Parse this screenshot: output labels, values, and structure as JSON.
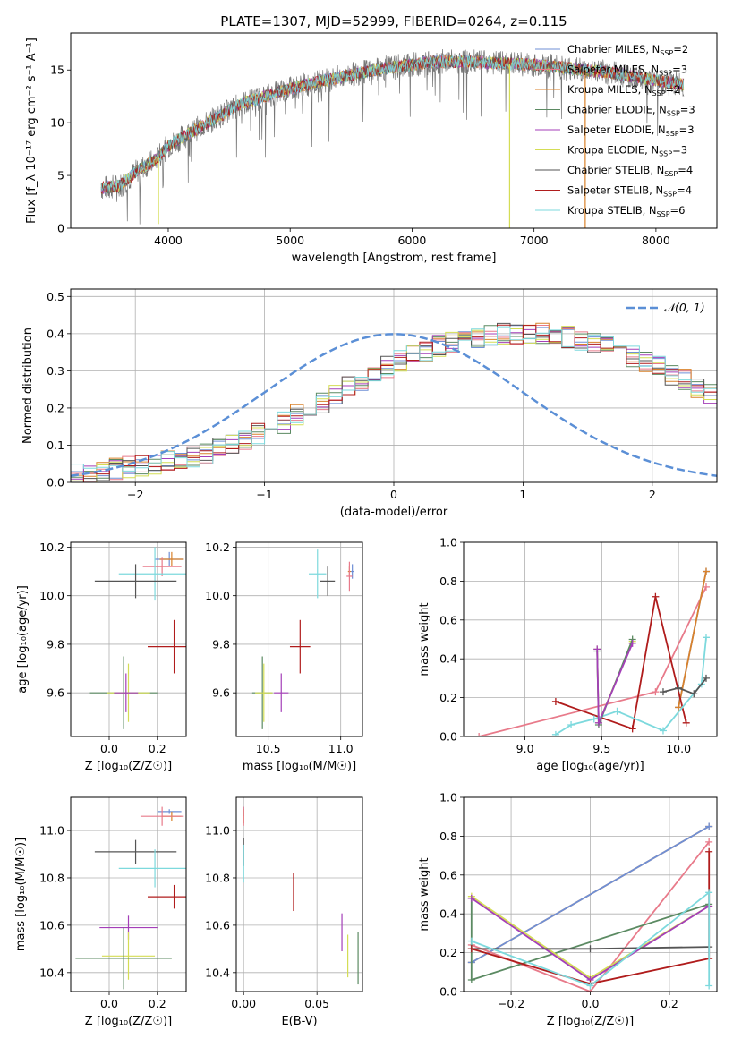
{
  "figure_title": "PLATE=1307, MJD=52999, FIBERID=0264, z=0.115",
  "colors": {
    "Chabrier MILES": "#6f8fd6",
    "Salpeter MILES": "#e87a8a",
    "Kroupa MILES": "#d9822b",
    "Chabrier ELODIE": "#5b8a62",
    "Salpeter ELODIE": "#a43fb8",
    "Kroupa ELODIE": "#d4dd55",
    "Chabrier STELIB": "#555555",
    "Salpeter STELIB": "#b01c1c",
    "Kroupa STELIB": "#7dd9dd",
    "gaussian": "#5b8fd6"
  },
  "chart_data": [
    {
      "id": "spectrum",
      "type": "line",
      "xlabel": "wavelength [Angstrom, rest frame]",
      "ylabel": "Flux [f_λ 10⁻¹⁷ erg cm⁻² s⁻¹ A⁻¹]",
      "xlim": [
        3200,
        8500
      ],
      "ylim": [
        0,
        18.5
      ],
      "xticks": [
        4000,
        5000,
        6000,
        7000,
        8000
      ],
      "yticks": [
        0,
        5,
        10,
        15
      ],
      "legend": "top-right",
      "legend_entries": [
        {
          "label": "Chabrier MILES, N",
          "sub": "SSP",
          "eq": "=2",
          "color": "#6f8fd6"
        },
        {
          "label": "Salpeter MILES, N",
          "sub": "SSP",
          "eq": "=3",
          "color": "#e87a8a"
        },
        {
          "label": "Kroupa MILES, N",
          "sub": "SSP",
          "eq": "=2",
          "color": "#d9822b"
        },
        {
          "label": "Chabrier ELODIE, N",
          "sub": "SSP",
          "eq": "=3",
          "color": "#5b8a62"
        },
        {
          "label": "Salpeter ELODIE, N",
          "sub": "SSP",
          "eq": "=3",
          "color": "#a43fb8"
        },
        {
          "label": "Kroupa ELODIE, N",
          "sub": "SSP",
          "eq": "=3",
          "color": "#d4dd55"
        },
        {
          "label": "Chabrier STELIB, N",
          "sub": "SSP",
          "eq": "=4",
          "color": "#555555"
        },
        {
          "label": "Salpeter STELIB, N",
          "sub": "SSP",
          "eq": "=4",
          "color": "#b01c1c"
        },
        {
          "label": "Kroupa STELIB, N",
          "sub": "SSP",
          "eq": "=6",
          "color": "#7dd9dd"
        }
      ],
      "continuum": [
        [
          3450,
          3.8
        ],
        [
          3600,
          4.0
        ],
        [
          3750,
          5.5
        ],
        [
          3900,
          6.5
        ],
        [
          4000,
          7.8
        ],
        [
          4200,
          9.2
        ],
        [
          4400,
          10.5
        ],
        [
          4600,
          11.8
        ],
        [
          4800,
          12.5
        ],
        [
          5000,
          13.2
        ],
        [
          5200,
          13.8
        ],
        [
          5400,
          14.3
        ],
        [
          5600,
          14.8
        ],
        [
          5800,
          15.2
        ],
        [
          6000,
          15.5
        ],
        [
          6200,
          15.8
        ],
        [
          6400,
          15.8
        ],
        [
          6600,
          15.7
        ],
        [
          6800,
          15.6
        ],
        [
          7000,
          15.5
        ],
        [
          7200,
          15.3
        ],
        [
          7400,
          15.0
        ],
        [
          7600,
          14.8
        ],
        [
          7800,
          14.4
        ],
        [
          8000,
          14.0
        ],
        [
          8230,
          13.6
        ]
      ],
      "sharp_dips": [
        {
          "x": 6800,
          "y": 0,
          "color": "#d4dd55"
        },
        {
          "x": 7420,
          "y": 0,
          "color": "#d9822b"
        },
        {
          "x": 3920,
          "y": 0.4,
          "color": "#d4dd55"
        }
      ],
      "xrange": [
        3450,
        8230
      ]
    },
    {
      "id": "residuals",
      "type": "histogram",
      "xlabel": "(data-model)/error",
      "ylabel": "Normed distribution",
      "xlim": [
        -2.5,
        2.5
      ],
      "ylim": [
        0,
        0.52
      ],
      "xticks": [
        -2,
        -1,
        0,
        1,
        2
      ],
      "yticks": [
        0.0,
        0.1,
        0.2,
        0.3,
        0.4,
        0.5
      ],
      "grid": true,
      "legend": "top-right",
      "legend_label": "𝒩(0, 1)",
      "bin_width": 0.1,
      "x_start": -2.5,
      "series_base": [
        0.02,
        0.025,
        0.03,
        0.035,
        0.04,
        0.045,
        0.05,
        0.055,
        0.06,
        0.07,
        0.08,
        0.09,
        0.1,
        0.115,
        0.13,
        0.145,
        0.16,
        0.18,
        0.195,
        0.215,
        0.235,
        0.255,
        0.275,
        0.29,
        0.31,
        0.325,
        0.34,
        0.355,
        0.365,
        0.375,
        0.385,
        0.39,
        0.395,
        0.4,
        0.4,
        0.4,
        0.4,
        0.395,
        0.39,
        0.385,
        0.375,
        0.365,
        0.355,
        0.34,
        0.325,
        0.31,
        0.29,
        0.275,
        0.255,
        0.235,
        0.215,
        0.195,
        0.18,
        0.16,
        0.145,
        0.13,
        0.115,
        0.1,
        0.09,
        0.08,
        0.07,
        0.06,
        0.055,
        0.05,
        0.045,
        0.04,
        0.035,
        0.03,
        0.025,
        0.02,
        0.02,
        0.02,
        0.02,
        0.02,
        0.02,
        0.02
      ]
    },
    {
      "id": "age_vs_Z",
      "type": "errorbar",
      "xlabel": "Z [log₁₀(Z/Z☉)]",
      "ylabel": "age  [log₁₀(age/yr)]",
      "xlim": [
        -0.16,
        0.32
      ],
      "ylim": [
        9.42,
        10.22
      ],
      "xticks": [
        0.0,
        0.2
      ],
      "yticks": [
        9.6,
        9.8,
        10.0,
        10.2
      ],
      "grid": true,
      "points": [
        {
          "model": "Chabrier MILES",
          "x": 0.25,
          "y": 10.15,
          "xerr": 0.06,
          "yerr": 0.03
        },
        {
          "model": "Kroupa MILES",
          "x": 0.26,
          "y": 10.15,
          "xerr": 0.05,
          "yerr": 0.03
        },
        {
          "model": "Salpeter MILES",
          "x": 0.22,
          "y": 10.12,
          "xerr": 0.08,
          "yerr": 0.04
        },
        {
          "model": "Kroupa STELIB",
          "x": 0.19,
          "y": 10.09,
          "xerr": 0.15,
          "yerr": 0.11
        },
        {
          "model": "Chabrier STELIB",
          "x": 0.11,
          "y": 10.06,
          "xerr": 0.17,
          "yerr": 0.07
        },
        {
          "model": "Salpeter STELIB",
          "x": 0.27,
          "y": 9.79,
          "xerr": 0.11,
          "yerr": 0.11
        },
        {
          "model": "Chabrier ELODIE",
          "x": 0.06,
          "y": 9.6,
          "xerr": 0.14,
          "yerr": 0.15
        },
        {
          "model": "Kroupa ELODIE",
          "x": 0.08,
          "y": 9.6,
          "xerr": 0.09,
          "yerr": 0.12
        },
        {
          "model": "Salpeter ELODIE",
          "x": 0.07,
          "y": 9.6,
          "xerr": 0.05,
          "yerr": 0.08
        }
      ]
    },
    {
      "id": "age_vs_mass",
      "type": "errorbar",
      "xlabel": "mass [log₁₀(M/M☉)]",
      "ylabel": "",
      "xlim": [
        10.28,
        11.15
      ],
      "ylim": [
        9.42,
        10.22
      ],
      "xticks": [
        10.5,
        11.0
      ],
      "yticks": [
        9.6,
        9.8,
        10.0,
        10.2
      ],
      "grid": true,
      "points": [
        {
          "model": "Chabrier MILES",
          "x": 11.08,
          "y": 10.1,
          "xerr": 0.01,
          "yerr": 0.03
        },
        {
          "model": "Kroupa MILES",
          "x": 11.06,
          "y": 10.1,
          "xerr": 0.01,
          "yerr": 0.02
        },
        {
          "model": "Salpeter MILES",
          "x": 11.06,
          "y": 10.08,
          "xerr": 0.02,
          "yerr": 0.06
        },
        {
          "model": "Kroupa STELIB",
          "x": 10.84,
          "y": 10.09,
          "xerr": 0.06,
          "yerr": 0.1
        },
        {
          "model": "Chabrier STELIB",
          "x": 10.91,
          "y": 10.06,
          "xerr": 0.05,
          "yerr": 0.06
        },
        {
          "model": "Salpeter STELIB",
          "x": 10.72,
          "y": 9.79,
          "xerr": 0.07,
          "yerr": 0.11
        },
        {
          "model": "Chabrier ELODIE",
          "x": 10.46,
          "y": 9.6,
          "xerr": 0.07,
          "yerr": 0.15
        },
        {
          "model": "Kroupa ELODIE",
          "x": 10.47,
          "y": 9.6,
          "xerr": 0.06,
          "yerr": 0.12
        },
        {
          "model": "Salpeter ELODIE",
          "x": 10.59,
          "y": 9.6,
          "xerr": 0.05,
          "yerr": 0.08
        }
      ]
    },
    {
      "id": "weight_vs_age",
      "type": "line",
      "xlabel": "age  [log₁₀(age/yr)]",
      "ylabel": "mass weight",
      "xlim": [
        8.6,
        10.25
      ],
      "ylim": [
        0,
        1.0
      ],
      "xticks": [
        9.0,
        9.5,
        10.0
      ],
      "yticks": [
        0.0,
        0.2,
        0.4,
        0.6,
        0.8,
        1.0
      ],
      "grid": true,
      "series": [
        {
          "model": "Salpeter MILES",
          "x": [
            8.7,
            9.85,
            10.18
          ],
          "y": [
            0.0,
            0.23,
            0.77
          ]
        },
        {
          "model": "Chabrier MILES",
          "x": [
            10.0,
            10.18
          ],
          "y": [
            0.15,
            0.85
          ]
        },
        {
          "model": "Kroupa MILES",
          "x": [
            10.0,
            10.18
          ],
          "y": [
            0.15,
            0.85
          ]
        },
        {
          "model": "Salpeter STELIB",
          "x": [
            9.2,
            9.7,
            9.85,
            10.05
          ],
          "y": [
            0.18,
            0.04,
            0.72,
            0.07
          ]
        },
        {
          "model": "Kroupa STELIB",
          "x": [
            9.2,
            9.3,
            9.45,
            9.6,
            9.9,
            10.15,
            10.18
          ],
          "y": [
            0.01,
            0.06,
            0.09,
            0.13,
            0.03,
            0.27,
            0.51
          ]
        },
        {
          "model": "Chabrier STELIB",
          "x": [
            9.9,
            10.0,
            10.1,
            10.18
          ],
          "y": [
            0.23,
            0.25,
            0.22,
            0.3
          ]
        },
        {
          "model": "Kroupa ELODIE",
          "x": [
            9.47,
            9.48,
            9.7
          ],
          "y": [
            0.45,
            0.07,
            0.49
          ]
        },
        {
          "model": "Chabrier ELODIE",
          "x": [
            9.47,
            9.48,
            9.7
          ],
          "y": [
            0.44,
            0.06,
            0.5
          ]
        },
        {
          "model": "Salpeter ELODIE",
          "x": [
            9.47,
            9.48,
            9.7
          ],
          "y": [
            0.45,
            0.07,
            0.48
          ]
        }
      ]
    },
    {
      "id": "mass_vs_Z",
      "type": "errorbar",
      "xlabel": "Z [log₁₀(Z/Z☉)]",
      "ylabel": "mass [log₁₀(M/M☉)]",
      "xlim": [
        -0.16,
        0.32
      ],
      "ylim": [
        10.32,
        11.14
      ],
      "xticks": [
        0.0,
        0.2
      ],
      "yticks": [
        10.4,
        10.6,
        10.8,
        11.0
      ],
      "grid": true,
      "points": [
        {
          "model": "Chabrier MILES",
          "x": 0.25,
          "y": 11.08,
          "xerr": 0.05,
          "yerr": 0.01
        },
        {
          "model": "Kroupa MILES",
          "x": 0.26,
          "y": 11.06,
          "xerr": 0.04,
          "yerr": 0.02
        },
        {
          "model": "Salpeter MILES",
          "x": 0.22,
          "y": 11.06,
          "xerr": 0.09,
          "yerr": 0.04
        },
        {
          "model": "Chabrier STELIB",
          "x": 0.11,
          "y": 10.91,
          "xerr": 0.17,
          "yerr": 0.05
        },
        {
          "model": "Kroupa STELIB",
          "x": 0.19,
          "y": 10.84,
          "xerr": 0.15,
          "yerr": 0.08
        },
        {
          "model": "Salpeter STELIB",
          "x": 0.27,
          "y": 10.72,
          "xerr": 0.11,
          "yerr": 0.05
        },
        {
          "model": "Salpeter ELODIE",
          "x": 0.08,
          "y": 10.59,
          "xerr": 0.12,
          "yerr": 0.05
        },
        {
          "model": "Kroupa ELODIE",
          "x": 0.08,
          "y": 10.47,
          "xerr": 0.11,
          "yerr": 0.1
        },
        {
          "model": "Chabrier ELODIE",
          "x": 0.06,
          "y": 10.46,
          "xerr": 0.2,
          "yerr": 0.13
        }
      ]
    },
    {
      "id": "mass_vs_ebv",
      "type": "errorbar",
      "xlabel": "E(B-V)",
      "ylabel": "",
      "xlim": [
        -0.005,
        0.081
      ],
      "ylim": [
        10.32,
        11.14
      ],
      "xticks": [
        0.0,
        0.05
      ],
      "yticks": [
        10.4,
        10.6,
        10.8,
        11.0
      ],
      "grid": true,
      "points": [
        {
          "model": "Chabrier MILES",
          "x": 0.0,
          "y": 11.08,
          "xerr": 0.0,
          "yerr": 0.02
        },
        {
          "model": "Kroupa MILES",
          "x": 0.0,
          "y": 11.06,
          "xerr": 0.0,
          "yerr": 0.03
        },
        {
          "model": "Salpeter MILES",
          "x": 0.0,
          "y": 11.06,
          "xerr": 0.0,
          "yerr": 0.04
        },
        {
          "model": "Chabrier STELIB",
          "x": 0.0,
          "y": 10.91,
          "xerr": 0.0,
          "yerr": 0.06
        },
        {
          "model": "Kroupa STELIB",
          "x": 0.0,
          "y": 10.86,
          "xerr": 0.0,
          "yerr": 0.08
        },
        {
          "model": "Salpeter STELIB",
          "x": 0.034,
          "y": 10.74,
          "xerr": 0.0,
          "yerr": 0.08
        },
        {
          "model": "Salpeter ELODIE",
          "x": 0.067,
          "y": 10.57,
          "xerr": 0.0,
          "yerr": 0.08
        },
        {
          "model": "Kroupa ELODIE",
          "x": 0.071,
          "y": 10.47,
          "xerr": 0.0,
          "yerr": 0.09
        },
        {
          "model": "Chabrier ELODIE",
          "x": 0.078,
          "y": 10.46,
          "xerr": 0.0,
          "yerr": 0.11
        }
      ]
    },
    {
      "id": "weight_vs_Z",
      "type": "line",
      "xlabel": "Z [log₁₀(Z/Z☉)]",
      "ylabel": "mass weight",
      "xlim": [
        -0.32,
        0.32
      ],
      "ylim": [
        0,
        1.0
      ],
      "xticks": [
        -0.2,
        0.0,
        0.2
      ],
      "yticks": [
        0.0,
        0.2,
        0.4,
        0.6,
        0.8,
        1.0
      ],
      "grid": true,
      "series": [
        {
          "model": "Kroupa MILES",
          "x": [
            -0.3,
            0.3
          ],
          "y": [
            0.15,
            0.85
          ]
        },
        {
          "model": "Chabrier MILES",
          "x": [
            -0.3,
            0.3
          ],
          "y": [
            0.15,
            0.85
          ]
        },
        {
          "model": "Salpeter MILES",
          "x": [
            -0.3,
            0.0,
            0.3
          ],
          "y": [
            0.24,
            0.0,
            0.77
          ]
        },
        {
          "model": "Chabrier ELODIE",
          "x": [
            -0.3,
            -0.3,
            0.3
          ],
          "y": [
            0.48,
            0.06,
            0.45
          ]
        },
        {
          "model": "Kroupa ELODIE",
          "x": [
            -0.3,
            0.0,
            0.3
          ],
          "y": [
            0.49,
            0.07,
            0.44
          ]
        },
        {
          "model": "Salpeter ELODIE",
          "x": [
            -0.3,
            0.0,
            0.3
          ],
          "y": [
            0.48,
            0.06,
            0.44
          ]
        },
        {
          "model": "Chabrier STELIB",
          "x": [
            -0.3,
            0.0,
            0.3
          ],
          "y": [
            0.22,
            0.22,
            0.23
          ]
        },
        {
          "model": "Salpeter STELIB",
          "x": [
            -0.3,
            0.0,
            0.3,
            0.3
          ],
          "y": [
            0.22,
            0.04,
            0.17,
            0.72
          ]
        },
        {
          "model": "Kroupa STELIB",
          "x": [
            -0.3,
            0.0,
            0.3,
            0.3
          ],
          "y": [
            0.26,
            0.03,
            0.51,
            0.03
          ]
        }
      ]
    }
  ]
}
